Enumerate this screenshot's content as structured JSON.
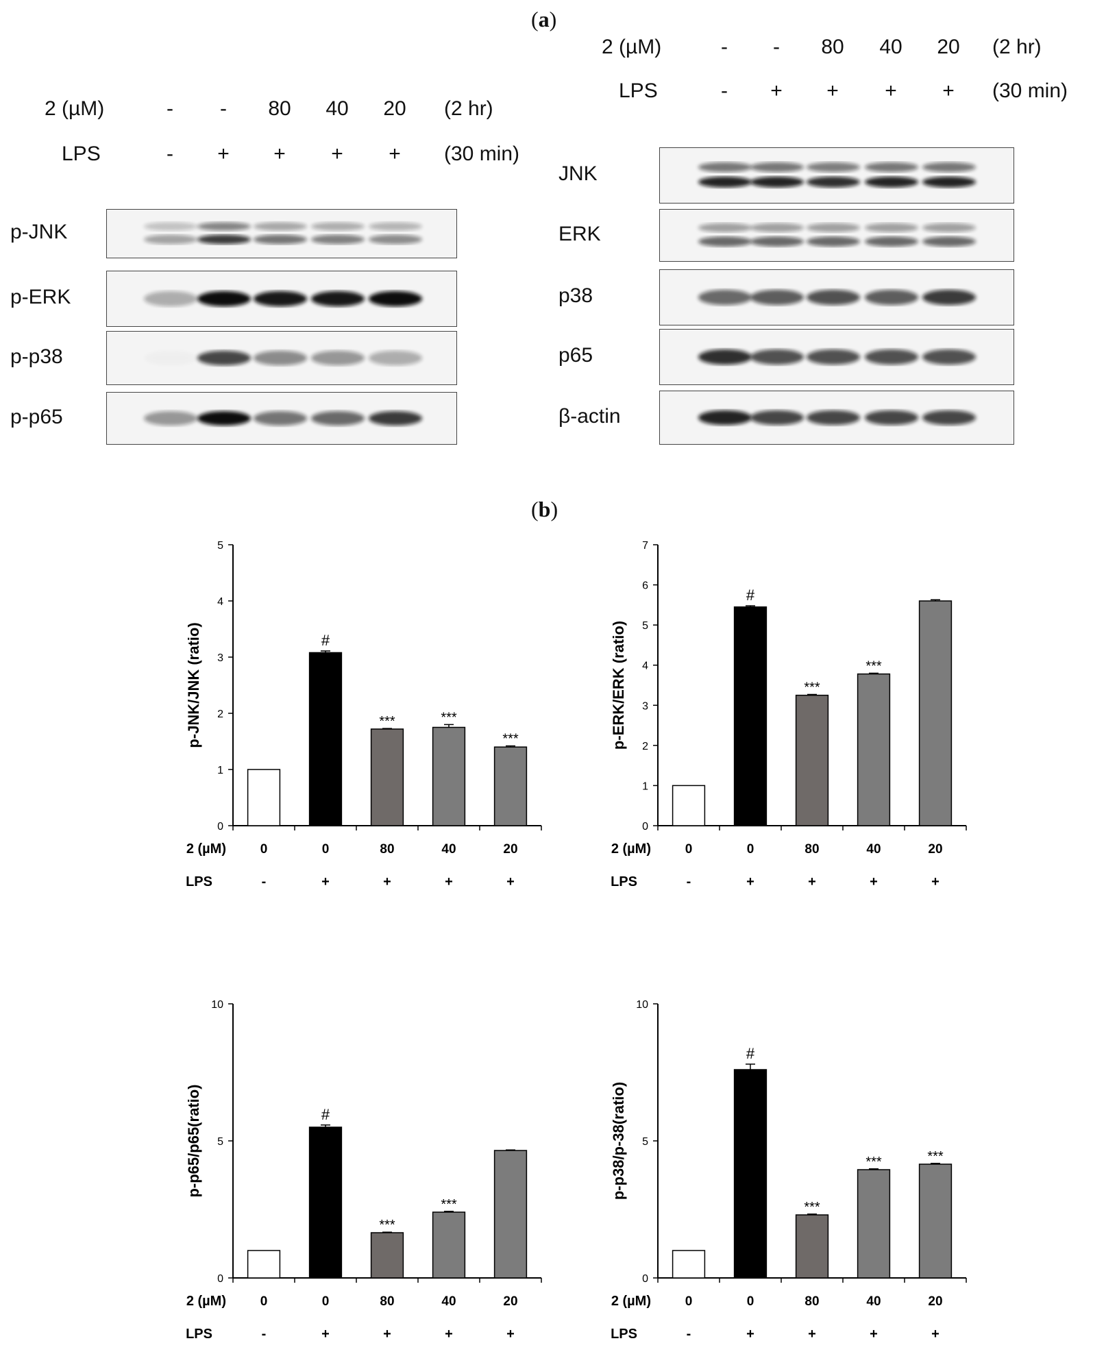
{
  "panel_a_label": "a",
  "panel_b_label": "b",
  "blots": [
    {
      "treatment_label": "2  (µM)",
      "treatment_values": [
        "-",
        "-",
        "80",
        "40",
        "20"
      ],
      "treatment_time": "(2 hr)",
      "lps_label": "LPS",
      "lps_values": [
        "-",
        "+",
        "+",
        "+",
        "+"
      ],
      "lps_time": "(30 min)",
      "bands": [
        {
          "name": "p-JNK",
          "intensity": [
            0.35,
            0.8,
            0.55,
            0.5,
            0.45
          ],
          "double": true
        },
        {
          "name": "p-ERK",
          "intensity": [
            0.3,
            1.0,
            0.95,
            0.95,
            1.0
          ],
          "double": false
        },
        {
          "name": "p-p38",
          "intensity": [
            0.02,
            0.75,
            0.45,
            0.4,
            0.3
          ],
          "double": false
        },
        {
          "name": "p-p65",
          "intensity": [
            0.4,
            1.0,
            0.55,
            0.6,
            0.8
          ],
          "double": false
        }
      ]
    },
    {
      "treatment_label": "2  (µM)",
      "treatment_values": [
        "-",
        "-",
        "80",
        "40",
        "20"
      ],
      "treatment_time": "(2 hr)",
      "lps_label": "LPS",
      "lps_values": [
        "-",
        "+",
        "+",
        "+",
        "+"
      ],
      "lps_time": "(30 min)",
      "bands": [
        {
          "name": "JNK",
          "intensity": [
            0.9,
            0.9,
            0.85,
            0.9,
            0.9
          ],
          "double": true
        },
        {
          "name": "ERK",
          "intensity": [
            0.6,
            0.6,
            0.6,
            0.6,
            0.6
          ],
          "double": true
        },
        {
          "name": "p38",
          "intensity": [
            0.6,
            0.65,
            0.7,
            0.65,
            0.8
          ],
          "double": false
        },
        {
          "name": "p65",
          "intensity": [
            0.85,
            0.7,
            0.7,
            0.7,
            0.7
          ],
          "double": false
        },
        {
          "name": "β-actin",
          "intensity": [
            0.9,
            0.75,
            0.75,
            0.75,
            0.75
          ],
          "double": false
        }
      ]
    }
  ],
  "chart_data": [
    {
      "type": "bar",
      "ylabel": "p-JNK/JNK (ratio)",
      "ylim": [
        0,
        5
      ],
      "yticks": [
        0,
        1,
        2,
        3,
        4,
        5
      ],
      "row1_label": "2 (µM)",
      "row2_label": "LPS",
      "categories": [
        "0",
        "0",
        "80",
        "40",
        "20"
      ],
      "lps": [
        "-",
        "+",
        "+",
        "+",
        "+"
      ],
      "values": [
        1.0,
        3.08,
        1.72,
        1.75,
        1.4
      ],
      "errors": [
        0,
        0.03,
        0.01,
        0.05,
        0.02
      ],
      "annotations": [
        "",
        "#",
        "***",
        "***",
        "***"
      ],
      "colors": [
        "#ffffff",
        "#000000",
        "#6f6a68",
        "#7c7c7c",
        "#7c7c7c"
      ]
    },
    {
      "type": "bar",
      "ylabel": "p-ERK/ERK (ratio)",
      "ylim": [
        0,
        7
      ],
      "yticks": [
        0,
        1,
        2,
        3,
        4,
        5,
        6,
        7
      ],
      "row1_label": "2 (µM)",
      "row2_label": "LPS",
      "categories": [
        "0",
        "0",
        "80",
        "40",
        "20"
      ],
      "lps": [
        "-",
        "+",
        "+",
        "+",
        "+"
      ],
      "values": [
        1.0,
        5.45,
        3.25,
        3.78,
        5.6
      ],
      "errors": [
        0,
        0.03,
        0.02,
        0.02,
        0.03
      ],
      "annotations": [
        "",
        "#",
        "***",
        "***",
        ""
      ],
      "colors": [
        "#ffffff",
        "#000000",
        "#6f6a68",
        "#7c7c7c",
        "#7c7c7c"
      ]
    },
    {
      "type": "bar",
      "ylabel": "p-p65/p65(ratio)",
      "ylim": [
        0,
        10
      ],
      "yticks": [
        0,
        5,
        10
      ],
      "row1_label": "2 (µM)",
      "row2_label": "LPS",
      "categories": [
        "0",
        "0",
        "80",
        "40",
        "20"
      ],
      "lps": [
        "-",
        "+",
        "+",
        "+",
        "+"
      ],
      "values": [
        1.0,
        5.5,
        1.65,
        2.4,
        4.65
      ],
      "errors": [
        0,
        0.08,
        0.02,
        0.03,
        0.02
      ],
      "annotations": [
        "",
        "#",
        "***",
        "***",
        ""
      ],
      "colors": [
        "#ffffff",
        "#000000",
        "#6f6a68",
        "#7c7c7c",
        "#7c7c7c"
      ]
    },
    {
      "type": "bar",
      "ylabel": "p-p38/p-38(ratio)",
      "ylim": [
        0,
        10
      ],
      "yticks": [
        0,
        5,
        10
      ],
      "row1_label": "2 (µM)",
      "row2_label": "LPS",
      "categories": [
        "0",
        "0",
        "80",
        "40",
        "20"
      ],
      "lps": [
        "-",
        "+",
        "+",
        "+",
        "+"
      ],
      "values": [
        1.0,
        7.6,
        2.3,
        3.95,
        4.15
      ],
      "errors": [
        0,
        0.2,
        0.03,
        0.03,
        0.03
      ],
      "annotations": [
        "",
        "#",
        "***",
        "***",
        "***"
      ],
      "colors": [
        "#ffffff",
        "#000000",
        "#6f6a68",
        "#7c7c7c",
        "#7c7c7c"
      ]
    }
  ]
}
